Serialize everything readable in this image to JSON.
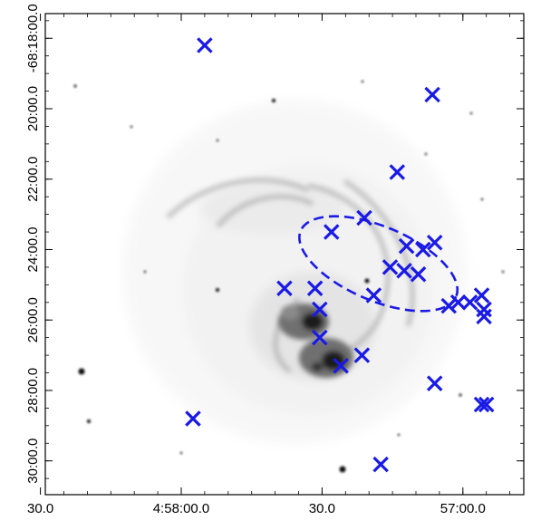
{
  "figure": {
    "x_ticks": [
      {
        "label": "30.0",
        "value": 30.0
      },
      {
        "label": "4:58:00.0",
        "value": 0.0
      },
      {
        "label": "30.0",
        "value": -30.0
      },
      {
        "label": "57:00.0",
        "value": -60.0
      },
      {
        "label": "56:30.0",
        "value": -90.0
      }
    ],
    "y_ticks": [
      {
        "label": "-68:18:00.0",
        "value": 18.0
      },
      {
        "label": "20:00.0",
        "value": 20.0
      },
      {
        "label": "22:00.0",
        "value": 22.0
      },
      {
        "label": "24:00.0",
        "value": 24.0
      },
      {
        "label": "26:00.0",
        "value": 26.0
      },
      {
        "label": "28:00.0",
        "value": 28.0
      },
      {
        "label": "30:00.0",
        "value": 30.0
      }
    ],
    "marker_color": "#1a1ae6",
    "ellipse_color": "#1a1ae6",
    "marker_symbol": "x-cross",
    "ellipse": {
      "ra": -42.0,
      "dec": 24.4,
      "semi_major": 29.0,
      "semi_minor": 1.05,
      "rotation_deg": 23
    },
    "markers": [
      {
        "ra": -5.0,
        "dec": 18.2
      },
      {
        "ra": -53.5,
        "dec": 19.6
      },
      {
        "ra": -46.0,
        "dec": 21.8
      },
      {
        "ra": -39.0,
        "dec": 23.1
      },
      {
        "ra": -32.0,
        "dec": 23.5
      },
      {
        "ra": -48.0,
        "dec": 23.9
      },
      {
        "ra": -51.5,
        "dec": 24.0
      },
      {
        "ra": -54.0,
        "dec": 23.8
      },
      {
        "ra": -44.5,
        "dec": 24.5
      },
      {
        "ra": -47.5,
        "dec": 24.6
      },
      {
        "ra": -50.5,
        "dec": 24.7
      },
      {
        "ra": -22.0,
        "dec": 25.1
      },
      {
        "ra": -28.5,
        "dec": 25.1
      },
      {
        "ra": -41.0,
        "dec": 25.3
      },
      {
        "ra": -57.0,
        "dec": 25.6
      },
      {
        "ra": -59.0,
        "dec": 25.5
      },
      {
        "ra": -61.5,
        "dec": 25.5
      },
      {
        "ra": -64.0,
        "dec": 25.3
      },
      {
        "ra": -64.5,
        "dec": 25.7
      },
      {
        "ra": -64.5,
        "dec": 25.9
      },
      {
        "ra": -29.5,
        "dec": 25.7
      },
      {
        "ra": -29.5,
        "dec": 26.5
      },
      {
        "ra": -38.5,
        "dec": 27.0
      },
      {
        "ra": -34.0,
        "dec": 27.3
      },
      {
        "ra": -54.0,
        "dec": 27.8
      },
      {
        "ra": -64.0,
        "dec": 28.4
      },
      {
        "ra": -65.0,
        "dec": 28.4
      },
      {
        "ra": -2.5,
        "dec": 28.8
      },
      {
        "ra": -42.5,
        "dec": 30.1
      }
    ]
  }
}
